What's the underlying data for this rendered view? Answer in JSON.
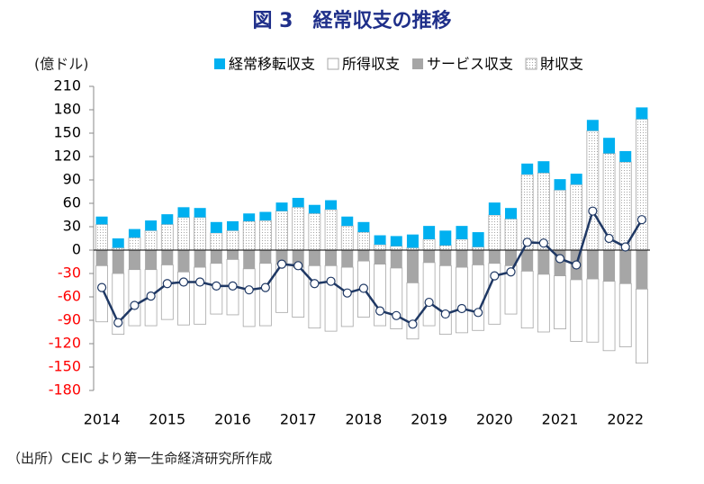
{
  "chart_data": {
    "type": "bar",
    "title": "図 3　経常収支の推移",
    "y_label": "(億ドル)",
    "note": "（出所）CEIC より第一生命経済研究所作成",
    "categories": [
      "2014",
      null,
      null,
      null,
      "2015",
      null,
      null,
      null,
      "2016",
      null,
      null,
      null,
      "2017",
      null,
      null,
      null,
      "2018",
      null,
      null,
      null,
      "2019",
      null,
      null,
      null,
      "2020",
      null,
      null,
      null,
      "2021",
      null,
      null,
      null,
      "2022",
      null
    ],
    "series": [
      {
        "name": "財収支",
        "color": "#a6a6a6",
        "pattern": "dots",
        "values": [
          33,
          3,
          16,
          25,
          33,
          42,
          42,
          22,
          25,
          37,
          38,
          50,
          55,
          47,
          52,
          31,
          23,
          7,
          5,
          3,
          14,
          6,
          14,
          4,
          45,
          40,
          97,
          99,
          77,
          84,
          153,
          124,
          113,
          168
        ]
      },
      {
        "name": "サービス収支",
        "color": "#a6a6a6",
        "values": [
          -20,
          -30,
          -25,
          -25,
          -19,
          -28,
          -22,
          -17,
          -12,
          -24,
          -17,
          -18,
          -22,
          -20,
          -20,
          -22,
          -14,
          -18,
          -23,
          -42,
          -16,
          -20,
          -22,
          -19,
          -17,
          -20,
          -27,
          -31,
          -33,
          -38,
          -37,
          -40,
          -43,
          -50
        ]
      },
      {
        "name": "所得収支",
        "color": "#ffffff",
        "values": [
          -72,
          -78,
          -72,
          -72,
          -70,
          -68,
          -73,
          -65,
          -71,
          -74,
          -80,
          -62,
          -64,
          -80,
          -84,
          -76,
          -72,
          -79,
          -78,
          -72,
          -81,
          -88,
          -84,
          -84,
          -78,
          -62,
          -73,
          -74,
          -68,
          -79,
          -81,
          -89,
          -81,
          -95
        ]
      },
      {
        "name": "経常移転収支",
        "color": "#00b0f0",
        "values": [
          10,
          12,
          11,
          13,
          13,
          13,
          12,
          14,
          12,
          10,
          11,
          11,
          12,
          11,
          12,
          12,
          13,
          12,
          13,
          17,
          17,
          19,
          17,
          19,
          16,
          14,
          14,
          15,
          14,
          14,
          14,
          20,
          14,
          15
        ]
      }
    ],
    "line": {
      "color": "#1f3864",
      "values": [
        -48,
        -93,
        -71,
        -59,
        -43,
        -41,
        -41,
        -46,
        -46,
        -51,
        -48,
        -18,
        -20,
        -43,
        -40,
        -55,
        -49,
        -78,
        -84,
        -95,
        -67,
        -82,
        -75,
        -80,
        -33,
        -28,
        10,
        9,
        -11,
        -19,
        50,
        15,
        4,
        39
      ]
    },
    "ylim": [
      -180,
      210
    ],
    "yticks": [
      -180,
      -150,
      -120,
      -90,
      -60,
      -30,
      0,
      30,
      60,
      90,
      120,
      150,
      180,
      210
    ],
    "negative_tick_color": "#ff0000"
  }
}
